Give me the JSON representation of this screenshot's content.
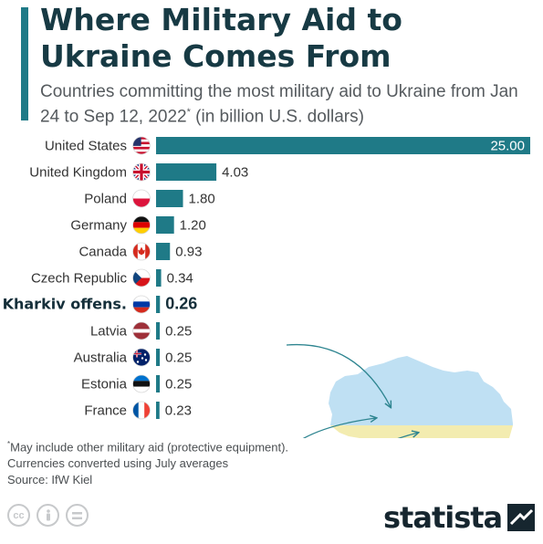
{
  "header": {
    "title": "Where Military Aid to Ukraine Comes From",
    "subtitle_main": "Countries committing the most military aid to Ukraine from Jan 24 to Sep 12, 2022",
    "subtitle_mark": "*",
    "subtitle_tail": " (in billion U.S. dollars)"
  },
  "chart_data": {
    "type": "bar",
    "orientation": "horizontal",
    "categories": [
      "United States",
      "United Kingdom",
      "Poland",
      "Germany",
      "Canada",
      "Czech Republic",
      "Kharkiv offens.",
      "Latvia",
      "Australia",
      "Estonia",
      "France"
    ],
    "values": [
      25.0,
      4.03,
      1.8,
      1.2,
      0.93,
      0.34,
      0.26,
      0.25,
      0.25,
      0.25,
      0.23
    ],
    "value_labels": [
      "25.00",
      "4.03",
      "1.80",
      "1.20",
      "0.93",
      "0.34",
      "0.26",
      "0.25",
      "0.25",
      "0.25",
      "0.23"
    ],
    "highlight_index": 6,
    "flags": [
      "us-flag-icon",
      "uk-flag-icon",
      "poland-flag-icon",
      "germany-flag-icon",
      "canada-flag-icon",
      "czech-flag-icon",
      "russia-flag-icon",
      "latvia-flag-icon",
      "australia-flag-icon",
      "estonia-flag-icon",
      "france-flag-icon"
    ],
    "xlim": [
      0,
      25
    ],
    "grid": false,
    "legend": "none",
    "bar_color": "#1f7a87"
  },
  "footnote": {
    "mark": "*",
    "line1": "May include other military aid (protective equipment).",
    "line2": "Currencies converted using July averages"
  },
  "source": "Source: IfW Kiel",
  "brand": {
    "name": "statista"
  },
  "icons": [
    "cc-icon",
    "person-icon",
    "equals-icon"
  ]
}
